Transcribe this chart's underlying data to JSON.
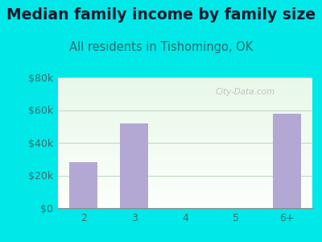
{
  "title": "Median family income by family size",
  "subtitle": "All residents in Tishomingo, OK",
  "categories": [
    "2",
    "3",
    "4",
    "5",
    "6+"
  ],
  "values": [
    28000,
    52000,
    0,
    0,
    58000
  ],
  "bar_color": "#b3a8d4",
  "outer_bg": "#00e8e8",
  "plot_bg_top": "#e8f8e8",
  "plot_bg_bottom": "#f8fff8",
  "title_color": "#1a1a2e",
  "subtitle_color": "#2a7070",
  "ytick_color": "#3a7070",
  "xtick_color": "#3a7070",
  "grid_color": "#c0dcc0",
  "ylim": [
    0,
    80000
  ],
  "yticks": [
    0,
    20000,
    40000,
    60000,
    80000
  ],
  "ytick_labels": [
    "$0",
    "$20k",
    "$40k",
    "$60k",
    "$80k"
  ],
  "watermark": "City-Data.com",
  "title_fontsize": 13.5,
  "subtitle_fontsize": 10.5
}
